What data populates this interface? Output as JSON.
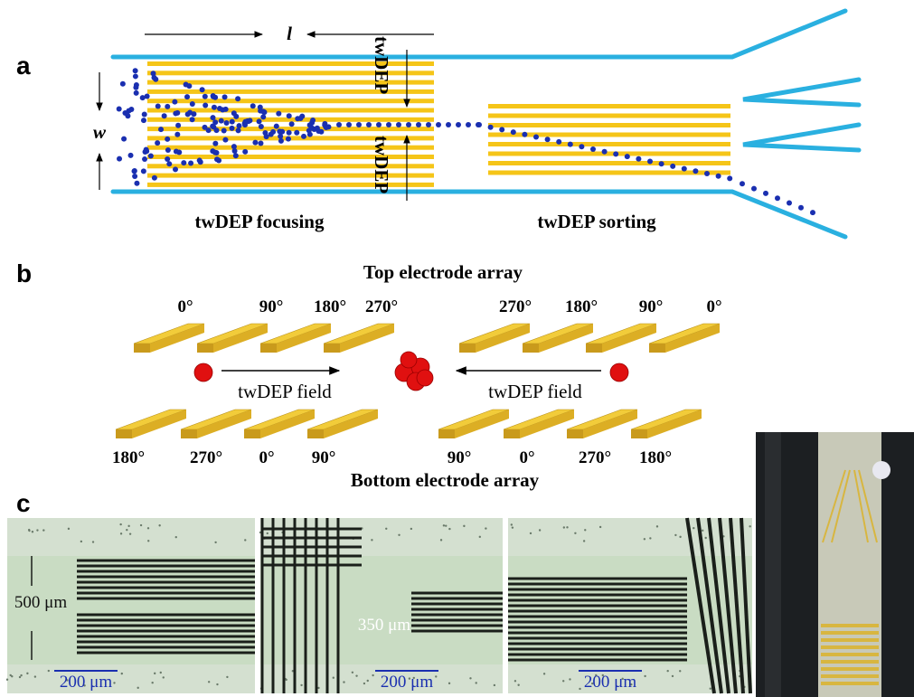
{
  "panel_a": {
    "label": "a",
    "length_symbol": "l",
    "width_symbol": "w",
    "vertical_labels": [
      "twDEP",
      "twDEP"
    ],
    "captions": [
      "twDEP focusing",
      "twDEP sorting"
    ]
  },
  "panel_b": {
    "label": "b",
    "top_title": "Top electrode array",
    "top_phases": [
      "0°",
      "90°",
      "180°",
      "270°",
      "270°",
      "180°",
      "90°",
      "0°"
    ],
    "field_labels": [
      "twDEP field",
      "twDEP field"
    ],
    "bottom_phases": [
      "180°",
      "270°",
      "0°",
      "90°",
      "90°",
      "0°",
      "270°",
      "180°"
    ],
    "bottom_title": "Bottom electrode array"
  },
  "panel_c": {
    "label": "c",
    "images": [
      {
        "gap_label": "500 μm",
        "scale_bar": "200 μm"
      },
      {
        "gap_label": "350 μm",
        "scale_bar": "200 μm"
      },
      {
        "scale_bar": "200 μm"
      }
    ]
  }
}
